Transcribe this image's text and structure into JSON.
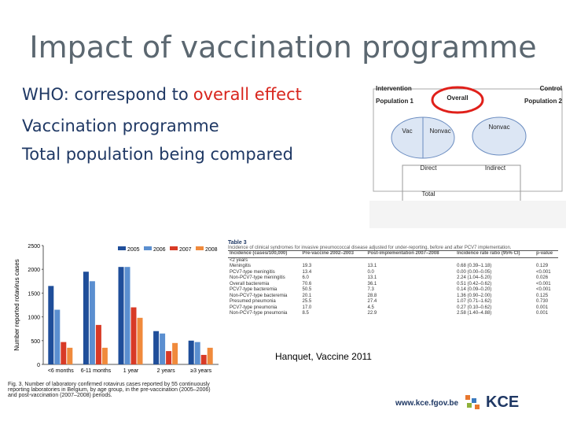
{
  "title": "Impact of vaccination programme",
  "bullets": {
    "first": {
      "text": "WHO: correspond to",
      "highlight": "overall effect"
    },
    "lines": [
      "Vaccination programme",
      "Total population being compared"
    ]
  },
  "diagram": {
    "labels": [
      "Intervention",
      "Overall",
      "Control",
      "Population 1",
      "Population 2",
      "Vac",
      "Nonvac",
      "Nonvac",
      "Direct",
      "Indirect",
      "Total"
    ]
  },
  "bar_chart": {
    "type": "bar",
    "y_label": "Number reported rotavirus cases",
    "categories": [
      "<6 months",
      "6-11 months",
      "1 year",
      "2 years",
      "≥3 years"
    ],
    "series": [
      {
        "name": "2005",
        "color": "#1f4e9a",
        "values": [
          1650,
          1950,
          2050,
          700,
          500
        ]
      },
      {
        "name": "2006",
        "color": "#5b8fd0",
        "values": [
          1150,
          1750,
          2050,
          650,
          470
        ]
      },
      {
        "name": "2007",
        "color": "#d83a26",
        "values": [
          470,
          830,
          1200,
          280,
          200
        ]
      },
      {
        "name": "2008",
        "color": "#f08a3c",
        "values": [
          350,
          350,
          980,
          450,
          350
        ]
      }
    ],
    "ylim": [
      0,
      2500
    ],
    "yticks": [
      0,
      500,
      1000,
      1500,
      2000,
      2500
    ],
    "caption": "Fig. 3. Number of laboratory confirmed rotavirus cases reported by 55 continuously reporting laboratories in Belgium, by age group, in the pre-vaccination (2005–2006) and post-vaccination (2007–2008) periods."
  },
  "table": {
    "title": "Table 3",
    "subtitle": "Incidence of clinical syndromes for invasive pneumococcal disease adjusted for under-reporting, before and after PCV7 implementation.",
    "header": [
      "Incidence (cases/100,000)",
      "Pre-vaccine 2002–2003",
      "Post-implementation 2007–2008",
      "Incidence rate ratio (95% CI)",
      "p-value"
    ],
    "rows": [
      [
        "<2 years",
        "",
        "",
        "",
        ""
      ],
      [
        "Meningitis",
        "19.3",
        "13.1",
        "0.68 (0.39–1.18)",
        "0.129"
      ],
      [
        "PCV7-type meningitis",
        "13.4",
        "0.0",
        "0.00 (0.00–0.05)",
        "<0.001"
      ],
      [
        "Non-PCV7-type meningitis",
        "6.0",
        "13.1",
        "2.24 (1.04–5.20)",
        "0.026"
      ],
      [
        "Overall bacteremia",
        "70.6",
        "36.1",
        "0.51 (0.42–0.62)",
        "<0.001"
      ],
      [
        "PCV7-type bacteremia",
        "50.5",
        "7.3",
        "0.14 (0.09–0.20)",
        "<0.001"
      ],
      [
        "Non-PCV7-type bacteremia",
        "20.1",
        "28.8",
        "1.36 (0.90–2.00)",
        "0.125"
      ],
      [
        "Presumed pneumonia",
        "25.5",
        "27.4",
        "1.07 (0.71–1.62)",
        "0.730"
      ],
      [
        "PCV7-type pneumonia",
        "17.0",
        "4.5",
        "0.27 (0.10–0.62)",
        "0.001"
      ],
      [
        "Non-PCV7-type pneumonia",
        "8.5",
        "22.9",
        "2.58 (1.40–4.88)",
        "0.001"
      ]
    ]
  },
  "citation": "Hanquet, Vaccine 2011",
  "footer": {
    "url": "www.kce.fgov.be",
    "logo": "KCE"
  }
}
